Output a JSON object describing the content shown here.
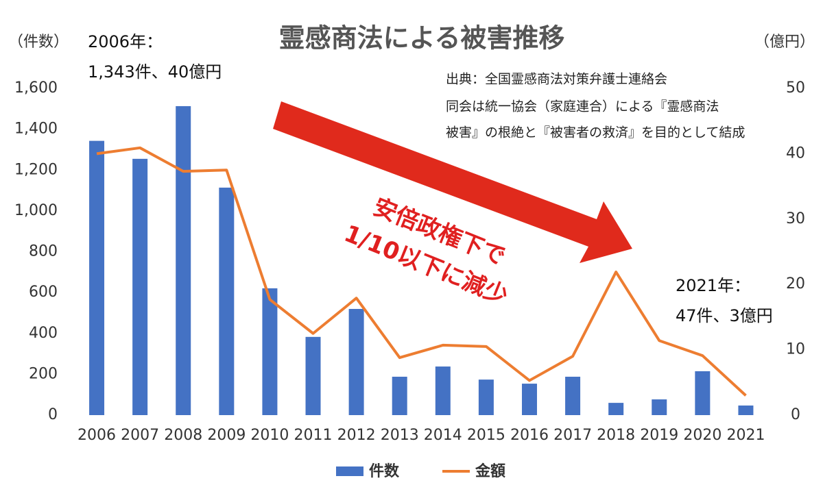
{
  "chart_data": {
    "type": "bar_line",
    "title": "霊感商法による被害推移",
    "y_label": "（件数）",
    "y2_label": "（億円）",
    "annotations": [
      "2006年：",
      "1,343件、40億円",
      "2021年：",
      "47件、3億円"
    ],
    "source": [
      "出典：全国霊感商法対策弁護士連絡会",
      "同会は統一協会（家庭連合）による『霊感商法",
      "被害』の根絶と『被害者の救済』を目的として結成"
    ],
    "callout": [
      "安倍政権下で",
      "1/10以下に減少"
    ],
    "categories": [
      "2006",
      "2007",
      "2008",
      "2009",
      "2010",
      "2011",
      "2012",
      "2013",
      "2014",
      "2015",
      "2016",
      "2017",
      "2018",
      "2019",
      "2020",
      "2021"
    ],
    "series": [
      {
        "name": "件数",
        "type": "bar",
        "color": "#4472c4",
        "values": [
          1343,
          1255,
          1513,
          1114,
          621,
          383,
          520,
          188,
          238,
          174,
          154,
          188,
          60,
          77,
          215,
          47
        ]
      },
      {
        "name": "金額",
        "type": "line",
        "axis": "y2",
        "color": "#ed7d31",
        "values": [
          40,
          40.9,
          37.3,
          37.5,
          17.7,
          12.5,
          17.9,
          8.8,
          10.7,
          10.5,
          5.3,
          9.0,
          21.9,
          11.4,
          9.1,
          3
        ]
      }
    ],
    "ylim": [
      0,
      1600
    ],
    "yticks": [
      0,
      200,
      400,
      600,
      800,
      {
        "value": 1000,
        "label": "1,000"
      },
      {
        "value": 1200,
        "label": "1,200"
      },
      {
        "value": 1400,
        "label": "1,400"
      },
      {
        "value": 1600,
        "label": "1,600"
      }
    ],
    "y2lim": [
      0,
      50
    ],
    "y2ticks": [
      0,
      10,
      20,
      30,
      40,
      50
    ],
    "grid": false,
    "legend": "bottom"
  }
}
